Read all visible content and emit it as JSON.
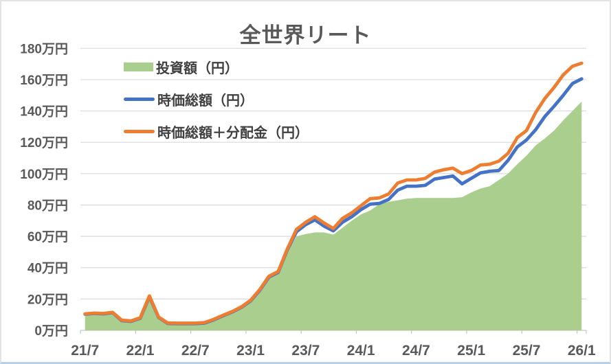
{
  "title": "全世界リート",
  "legend": {
    "items": [
      {
        "label": "投資額（円）",
        "swatch": "area"
      },
      {
        "label": "時価総額（円）",
        "swatch": "line"
      },
      {
        "label": "時価総額＋分配金（円）",
        "swatch": "line"
      }
    ]
  },
  "colors": {
    "area_fill": "#A9CE8E",
    "line_market_value": "#4472C4",
    "line_total_with_dividends": "#ED7D31",
    "grid": "#D9D9D9",
    "axis_line": "#C6C6C6",
    "axis_text": "#595959",
    "legend_text": "#404040",
    "title_text": "#595959",
    "bottom_strip": "#B7CFE9"
  },
  "chart_data": {
    "type": "area",
    "title": "全世界リート",
    "grid": "horizontal",
    "legend_position": "inside-top-left",
    "ylim": [
      0,
      180
    ],
    "y_step": 20,
    "y_unit": "万円",
    "y_tick_labels": [
      "0万円",
      "20万円",
      "40万円",
      "60万円",
      "80万円",
      "100万円",
      "120万円",
      "140万円",
      "160万円",
      "180万円"
    ],
    "x_tick_labels": [
      "21/7",
      "22/1",
      "22/7",
      "23/1",
      "23/7",
      "24/1",
      "24/7",
      "25/1",
      "25/7",
      "26/1"
    ],
    "months": [
      "21/7",
      "21/8",
      "21/9",
      "21/10",
      "21/11",
      "21/12",
      "22/1",
      "22/2",
      "22/3",
      "22/4",
      "22/5",
      "22/6",
      "22/7",
      "22/8",
      "22/9",
      "22/10",
      "22/11",
      "22/12",
      "23/1",
      "23/2",
      "23/3",
      "23/4",
      "23/5",
      "23/6",
      "23/7",
      "23/8",
      "23/9",
      "23/10",
      "23/11",
      "23/12",
      "24/1",
      "24/2",
      "24/3",
      "24/4",
      "24/5",
      "24/6",
      "24/7",
      "24/8",
      "24/9",
      "24/10",
      "24/11",
      "24/12",
      "25/1",
      "25/2",
      "25/3",
      "25/4",
      "25/5",
      "25/6",
      "25/7",
      "25/8",
      "25/9",
      "25/10",
      "25/11",
      "25/12",
      "26/1"
    ],
    "series": [
      {
        "name": "投資額（円）",
        "type": "area",
        "color": "#A9CE8E",
        "values": [
          10,
          10,
          10,
          11,
          6,
          5.5,
          7.5,
          20.5,
          8,
          4.2,
          4.2,
          4.2,
          4.2,
          4.5,
          6.5,
          9,
          11.5,
          14.5,
          18.5,
          25,
          33.5,
          36.5,
          50,
          60,
          61.5,
          62.5,
          62.5,
          61,
          65.5,
          70,
          74,
          76.5,
          80.5,
          82,
          83,
          84,
          84.5,
          84.5,
          84.5,
          84.5,
          84.5,
          85,
          88,
          90.5,
          92,
          96,
          100,
          106,
          111.5,
          118,
          122.5,
          127.5,
          134,
          140,
          146
        ]
      },
      {
        "name": "時価総額（円）",
        "type": "line",
        "color": "#4472C4",
        "values": [
          10.3,
          10.8,
          10.5,
          11.3,
          6.2,
          5.7,
          7.7,
          21.5,
          8.3,
          4.4,
          4.3,
          4.3,
          4.3,
          4.7,
          6.7,
          9.3,
          11.7,
          14.7,
          18.8,
          25.5,
          34,
          37,
          51.5,
          63,
          67.5,
          70.5,
          66.5,
          63.5,
          69,
          72.5,
          77,
          80.5,
          81,
          83.5,
          89.5,
          92,
          92,
          92.5,
          96.5,
          97.5,
          98.5,
          93.5,
          97,
          100.5,
          101.5,
          102,
          108.5,
          117,
          121.5,
          128,
          136.5,
          143,
          150,
          157.5,
          160.5
        ]
      },
      {
        "name": "時価総額＋分配金（円）",
        "type": "line",
        "color": "#ED7D31",
        "values": [
          10.5,
          11,
          10.8,
          11.5,
          6.5,
          6,
          8,
          22,
          8.5,
          4.7,
          4.6,
          4.6,
          4.6,
          5,
          7,
          9.6,
          12,
          15,
          19.2,
          26,
          34.5,
          37.5,
          52,
          64.5,
          69,
          72.5,
          68.5,
          65,
          71.5,
          75,
          79.5,
          84,
          84.5,
          87,
          94,
          96,
          96,
          97,
          101,
          102.5,
          103.5,
          100,
          102,
          105.5,
          106,
          108,
          113,
          123,
          127.5,
          139,
          148,
          155,
          163,
          168.5,
          170.5
        ]
      }
    ]
  }
}
